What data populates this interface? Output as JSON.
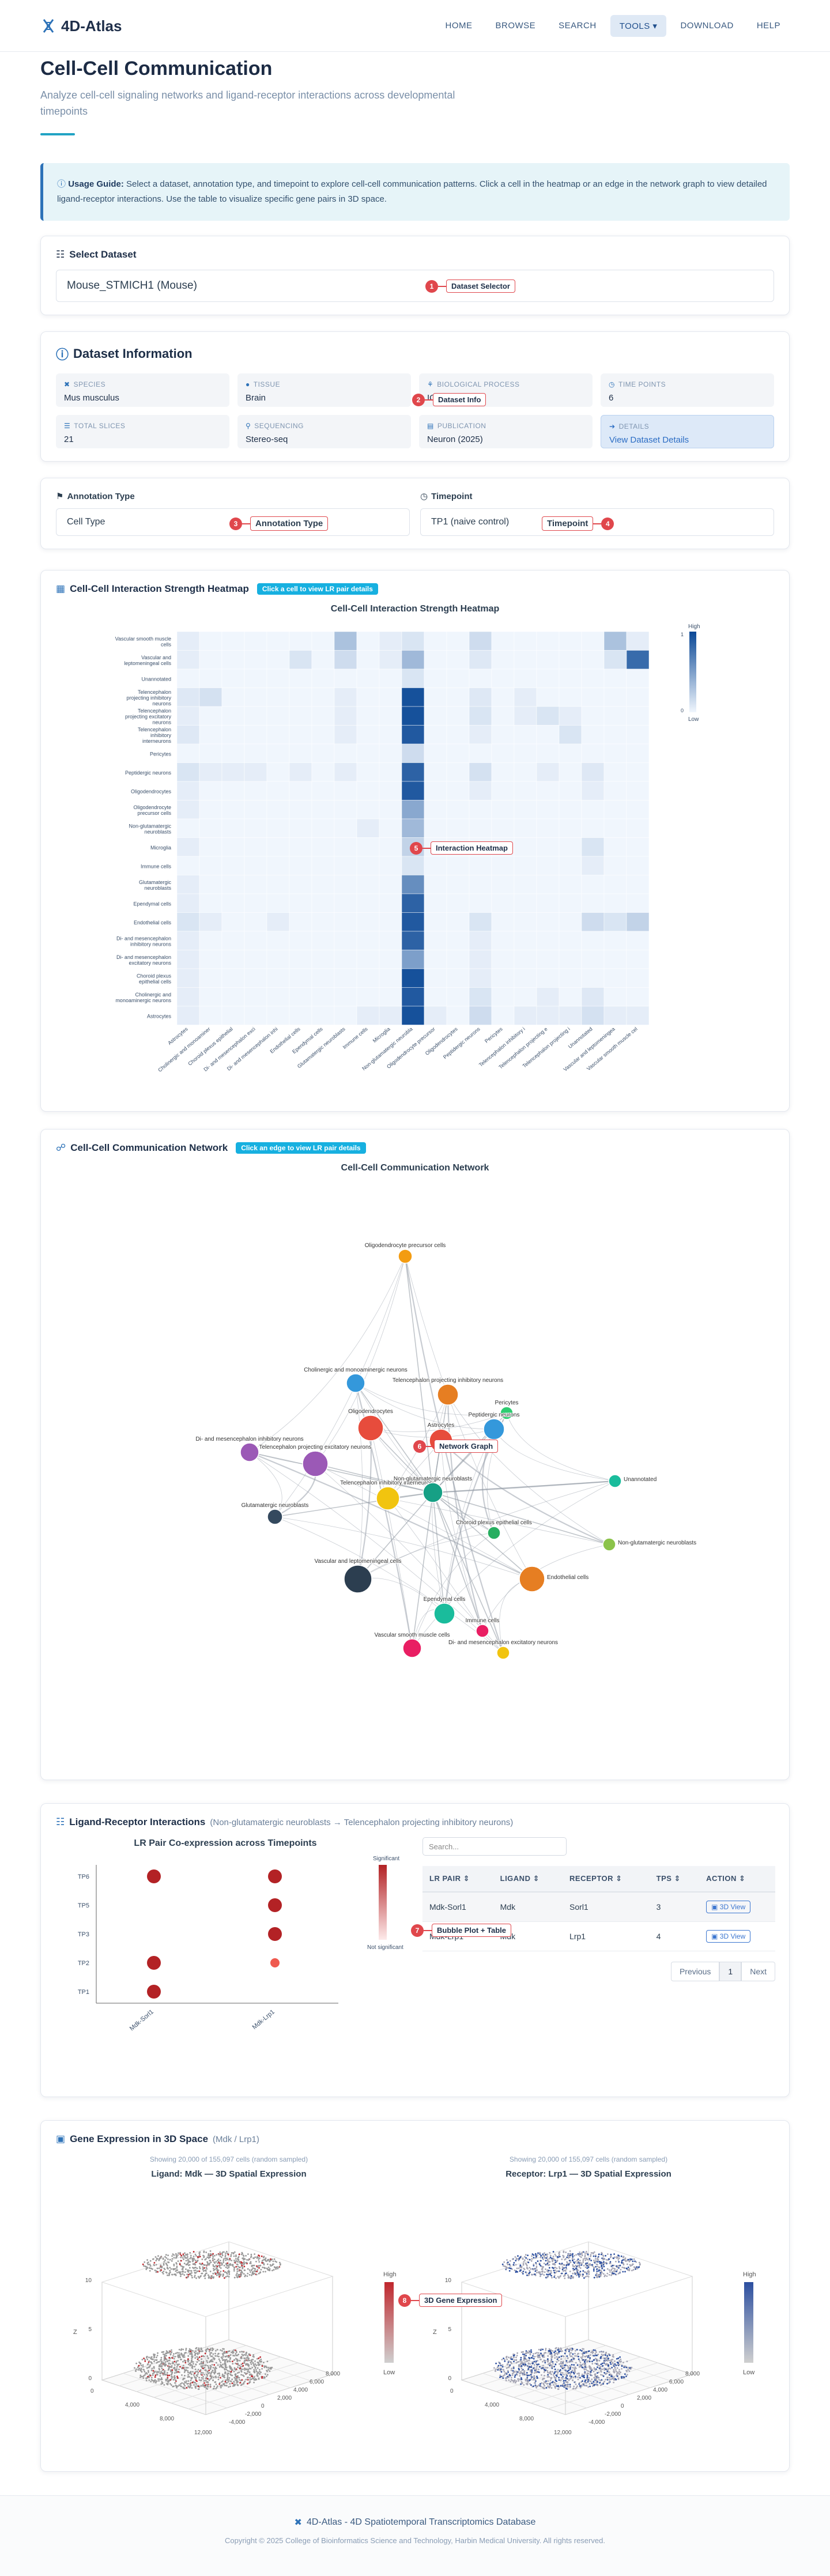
{
  "nav": {
    "brand": "4D-Atlas",
    "items": [
      {
        "label": "HOME",
        "active": false
      },
      {
        "label": "BROWSE",
        "active": false
      },
      {
        "label": "SEARCH",
        "active": false
      },
      {
        "label": "TOOLS ▾",
        "active": true
      },
      {
        "label": "DOWNLOAD",
        "active": false
      },
      {
        "label": "HELP",
        "active": false
      }
    ]
  },
  "header": {
    "title": "Cell-Cell Communication",
    "subtitle": "Analyze cell-cell signaling networks and ligand-receptor interactions across developmental timepoints"
  },
  "guide": {
    "label": "Usage Guide:",
    "text": " Select a dataset, annotation type, and timepoint to explore cell-cell communication patterns. Click a cell in the heatmap or an edge in the network graph to view detailed ligand-receptor interactions. Use the table to visualize specific gene pairs in 3D space."
  },
  "dataset": {
    "title": "Select Dataset",
    "value": "Mouse_STMICH1 (Mouse)",
    "badge_num": "1",
    "badge_label": "Dataset Selector"
  },
  "info": {
    "title": "Dataset Information",
    "badge_num": "2",
    "badge_label": "Dataset Info",
    "fields": [
      {
        "key": "SPECIES",
        "value": "Mus musculus"
      },
      {
        "key": "TISSUE",
        "value": "Brain"
      },
      {
        "key": "BIOLOGICAL PROCESS",
        "value": "ICH"
      },
      {
        "key": "TIME POINTS",
        "value": "6"
      },
      {
        "key": "TOTAL SLICES",
        "value": "21"
      },
      {
        "key": "SEQUENCING",
        "value": "Stereo-seq"
      },
      {
        "key": "PUBLICATION",
        "value": "Neuron (2025)"
      },
      {
        "key": "DETAILS",
        "value": "View Dataset Details"
      }
    ]
  },
  "annotation": {
    "label": "Annotation Type",
    "value": "Cell Type",
    "badge_num": "3",
    "badge_label": "Annotation Type"
  },
  "timepoint": {
    "label": "Timepoint",
    "value": "TP1 (naive control)",
    "badge_num": "4",
    "badge_label": "Timepoint"
  },
  "heatmap": {
    "title": "Cell-Cell Interaction Strength Heatmap",
    "hint": "Click a cell to view LR pair details",
    "chart_title": "Cell-Cell Interaction Strength Heatmap",
    "badge_num": "5",
    "badge_label": "Interaction Heatmap",
    "legend_high": "High",
    "legend_low": "Low",
    "legend_max": "1",
    "legend_min": "0"
  },
  "network": {
    "title": "Cell-Cell Communication Network",
    "hint": "Click an edge to view LR pair details",
    "chart_title": "Cell-Cell Communication Network",
    "badge_num": "6",
    "badge_label": "Network Graph"
  },
  "lr": {
    "title": "Ligand-Receptor Interactions",
    "subtitle": "(Non-glutamatergic neuroblasts → Telencephalon projecting inhibitory neurons)",
    "chart_title": "LR Pair Co-expression across Timepoints",
    "legend_top": "Significant",
    "legend_bottom": "Not significant",
    "search_placeholder": "Search...",
    "badge_num": "7",
    "badge_label": "Bubble Plot + Table",
    "columns": [
      "LR PAIR",
      "LIGAND",
      "RECEPTOR",
      "TPS",
      "ACTION"
    ],
    "rows": [
      {
        "pair": "Mdk-Sorl1",
        "ligand": "Mdk",
        "receptor": "Sorl1",
        "tps": "3",
        "action": "3D View"
      },
      {
        "pair": "Mdk-Lrp1",
        "ligand": "Mdk",
        "receptor": "Lrp1",
        "tps": "4",
        "action": "3D View"
      }
    ],
    "pager": {
      "prev": "Previous",
      "page": "1",
      "next": "Next"
    }
  },
  "expr": {
    "title": "Gene Expression in 3D Space",
    "subtitle": "(Mdk / Lrp1)",
    "badge_num": "8",
    "badge_label": "3D Gene Expression",
    "left": {
      "note": "Showing 20,000 of 155,097 cells (random sampled)",
      "title": "Ligand: Mdk — 3D Spatial Expression",
      "high": "High",
      "low": "Low"
    },
    "right": {
      "note": "Showing 20,000 of 155,097 cells (random sampled)",
      "title": "Receptor: Lrp1 — 3D Spatial Expression",
      "high": "High",
      "low": "Low"
    },
    "axis": {
      "z_label": "Z",
      "z_ticks": [
        "10",
        "5",
        "0"
      ],
      "x_ticks": [
        "-4,000",
        "-2,000",
        "0",
        "2,000",
        "4,000",
        "6,000",
        "8,000"
      ],
      "y_ticks": [
        "0",
        "4,000",
        "8,000",
        "12,000"
      ]
    }
  },
  "footer": {
    "title": "4D-Atlas - 4D Spatiotemporal Transcriptomics Database",
    "copyright": "Copyright © 2025 College of Bioinformatics Science and Technology, Harbin Medical University. All rights reserved."
  },
  "chart_data": [
    {
      "type": "heatmap",
      "title": "Cell-Cell Interaction Strength Heatmap",
      "rows": [
        "Vascular smooth muscle cells",
        "Vascular and leptomeningeal cells",
        "Unannotated",
        "Telencephalon projecting inhibitory neurons",
        "Telencephalon projecting excitatory neurons",
        "Telencephalon inhibitory interneurons",
        "Pericytes",
        "Peptidergic neurons",
        "Oligodendrocytes",
        "Oligodendrocyte precursor cells",
        "Non-glutamatergic neuroblasts",
        "Microglia",
        "Immune cells",
        "Glutamatergic neuroblasts",
        "Ependymal cells",
        "Endothelial cells",
        "Di- and mesencephalon inhibitory neurons",
        "Di- and mesencephalon excitatory neurons",
        "Choroid plexus epithelial cells",
        "Cholinergic and monoaminergic neurons",
        "Astrocytes"
      ],
      "columns": [
        "Astrocytes",
        "Cholinergic and monoaminergic neurons",
        "Choroid plexus epithelial cells",
        "Di- and mesencephalon excitatory neurons",
        "Di- and mesencephalon inhibitory neurons",
        "Endothelial cells",
        "Ependymal cells",
        "Glutamatergic neuroblasts",
        "Immune cells",
        "Microglia",
        "Non-glutamatergic neuroblasts",
        "Oligodendrocyte precursor cells",
        "Oligodendrocytes",
        "Peptidergic neurons",
        "Pericytes",
        "Telencephalon inhibitory interneurons",
        "Telencephalon projecting excitatory neurons",
        "Telencephalon projecting inhibitory neurons",
        "Unannotated",
        "Vascular and leptomeningeal cells",
        "Vascular smooth muscle cells"
      ],
      "values": [
        [
          0.05,
          0,
          0,
          0,
          0,
          0,
          0,
          0.3,
          0,
          0.05,
          0.1,
          0,
          0,
          0.15,
          0,
          0,
          0,
          0,
          0,
          0.3,
          0.05
        ],
        [
          0.05,
          0,
          0,
          0,
          0,
          0.1,
          0,
          0.15,
          0,
          0.05,
          0.35,
          0,
          0,
          0.08,
          0,
          0,
          0,
          0,
          0,
          0.1,
          0.8
        ],
        [
          0,
          0,
          0,
          0,
          0,
          0,
          0,
          0,
          0,
          0,
          0.1,
          0,
          0,
          0,
          0,
          0,
          0,
          0,
          0,
          0,
          0
        ],
        [
          0.08,
          0.12,
          0,
          0,
          0,
          0,
          0,
          0.05,
          0,
          0,
          0.95,
          0,
          0,
          0.08,
          0,
          0.05,
          0,
          0,
          0,
          0,
          0
        ],
        [
          0.05,
          0,
          0,
          0,
          0,
          0,
          0,
          0.05,
          0,
          0,
          0.95,
          0,
          0,
          0.1,
          0,
          0.05,
          0.1,
          0.05,
          0,
          0,
          0
        ],
        [
          0.08,
          0,
          0,
          0,
          0,
          0,
          0,
          0.05,
          0,
          0,
          0.9,
          0,
          0,
          0.05,
          0,
          0,
          0,
          0.1,
          0,
          0,
          0
        ],
        [
          0,
          0,
          0,
          0,
          0,
          0,
          0,
          0,
          0,
          0,
          0.15,
          0,
          0,
          0,
          0,
          0,
          0,
          0,
          0,
          0,
          0
        ],
        [
          0.1,
          0.05,
          0.05,
          0.05,
          0,
          0.05,
          0,
          0.05,
          0,
          0,
          0.85,
          0,
          0,
          0.12,
          0,
          0,
          0.05,
          0,
          0.08,
          0,
          0
        ],
        [
          0.05,
          0,
          0,
          0,
          0,
          0,
          0,
          0,
          0,
          0,
          0.9,
          0,
          0,
          0.05,
          0,
          0,
          0,
          0,
          0.05,
          0,
          0
        ],
        [
          0.05,
          0,
          0,
          0,
          0,
          0,
          0,
          0,
          0,
          0,
          0.45,
          0,
          0,
          0,
          0,
          0,
          0,
          0,
          0,
          0,
          0
        ],
        [
          0,
          0,
          0,
          0,
          0,
          0,
          0,
          0,
          0.05,
          0,
          0.35,
          0,
          0,
          0,
          0,
          0,
          0,
          0,
          0,
          0,
          0
        ],
        [
          0.05,
          0,
          0,
          0,
          0,
          0,
          0,
          0,
          0,
          0,
          0.2,
          0,
          0,
          0,
          0,
          0,
          0,
          0,
          0.1,
          0,
          0
        ],
        [
          0,
          0,
          0,
          0,
          0,
          0,
          0,
          0,
          0,
          0,
          0.1,
          0,
          0,
          0,
          0,
          0,
          0,
          0,
          0.05,
          0,
          0
        ],
        [
          0.05,
          0,
          0,
          0,
          0,
          0,
          0,
          0,
          0,
          0,
          0.6,
          0,
          0,
          0,
          0,
          0,
          0,
          0,
          0,
          0,
          0
        ],
        [
          0.05,
          0,
          0,
          0,
          0,
          0,
          0,
          0,
          0,
          0,
          0.85,
          0,
          0,
          0,
          0,
          0,
          0,
          0,
          0,
          0,
          0
        ],
        [
          0.1,
          0.05,
          0,
          0,
          0.05,
          0,
          0,
          0,
          0,
          0,
          0.9,
          0,
          0,
          0.1,
          0,
          0,
          0,
          0,
          0.15,
          0.1,
          0.2
        ],
        [
          0.05,
          0,
          0,
          0,
          0,
          0,
          0,
          0,
          0,
          0,
          0.85,
          0,
          0,
          0.05,
          0,
          0,
          0,
          0,
          0,
          0,
          0
        ],
        [
          0.05,
          0,
          0,
          0,
          0,
          0,
          0,
          0,
          0,
          0,
          0.5,
          0,
          0,
          0.05,
          0,
          0,
          0,
          0,
          0,
          0,
          0
        ],
        [
          0.05,
          0,
          0,
          0,
          0,
          0,
          0,
          0,
          0,
          0,
          0.95,
          0,
          0,
          0.05,
          0,
          0,
          0,
          0,
          0,
          0,
          0
        ],
        [
          0.05,
          0,
          0,
          0,
          0,
          0,
          0,
          0,
          0,
          0,
          0.9,
          0,
          0,
          0.1,
          0,
          0,
          0.05,
          0,
          0.08,
          0,
          0
        ],
        [
          0.05,
          0,
          0,
          0,
          0,
          0,
          0,
          0,
          0.05,
          0.05,
          0.95,
          0.05,
          0,
          0.15,
          0,
          0.05,
          0.05,
          0.05,
          0.12,
          0.05,
          0.05
        ]
      ],
      "colorbar_range": [
        0,
        1
      ]
    },
    {
      "type": "scatter",
      "title": "LR Pair Co-expression across Timepoints",
      "categories": [
        "Mdk-Sorl1",
        "Mdk-Lrp1"
      ],
      "y": [
        "TP6",
        "TP5",
        "TP3",
        "TP2",
        "TP1"
      ],
      "points": [
        {
          "x": "Mdk-Sorl1",
          "y": "TP6",
          "significant": true
        },
        {
          "x": "Mdk-Sorl1",
          "y": "TP2",
          "significant": true
        },
        {
          "x": "Mdk-Sorl1",
          "y": "TP1",
          "significant": true
        },
        {
          "x": "Mdk-Lrp1",
          "y": "TP6",
          "significant": true
        },
        {
          "x": "Mdk-Lrp1",
          "y": "TP5",
          "significant": true
        },
        {
          "x": "Mdk-Lrp1",
          "y": "TP3",
          "significant": true
        },
        {
          "x": "Mdk-Lrp1",
          "y": "TP2",
          "significant": false
        }
      ]
    }
  ],
  "network_nodes": [
    {
      "label": "Oligodendrocyte precursor cells",
      "color": "#f39c12"
    },
    {
      "label": "Cholinergic and monoaminergic neurons",
      "color": "#3498db"
    },
    {
      "label": "Telencephalon projecting inhibitory neurons",
      "color": "#e67e22"
    },
    {
      "label": "Pericytes",
      "color": "#2ecc71"
    },
    {
      "label": "Di- and mesencephalon inhibitory neurons",
      "color": "#9b59b6"
    },
    {
      "label": "Oligodendrocytes",
      "color": "#e74c3c"
    },
    {
      "label": "Astrocytes",
      "color": "#e74c3c"
    },
    {
      "label": "Peptidergic neurons",
      "color": "#3498db"
    },
    {
      "label": "Telencephalon projecting excitatory neurons",
      "color": "#9b59b6"
    },
    {
      "label": "Unannotated",
      "color": "#1abc9c"
    },
    {
      "label": "Telencephalon inhibitory interneurons",
      "color": "#f1c40f"
    },
    {
      "label": "Non-glutamatergic neuroblasts",
      "color": "#16a085"
    },
    {
      "label": "Glutamatergic neuroblasts",
      "color": "#34495e"
    },
    {
      "label": "Choroid plexus epithelial cells",
      "color": "#27ae60"
    },
    {
      "label": "Non-glutamatergic neuroblasts",
      "color": "#8bc34a"
    },
    {
      "label": "Vascular and leptomeningeal cells",
      "color": "#2c3e50"
    },
    {
      "label": "Endothelial cells",
      "color": "#e67e22"
    },
    {
      "label": "Ependymal cells",
      "color": "#1abc9c"
    },
    {
      "label": "Immune cells",
      "color": "#e91e63"
    },
    {
      "label": "Vascular smooth muscle cells",
      "color": "#e91e63"
    },
    {
      "label": "Di- and mesencephalon excitatory neurons",
      "color": "#f1c40f"
    }
  ]
}
